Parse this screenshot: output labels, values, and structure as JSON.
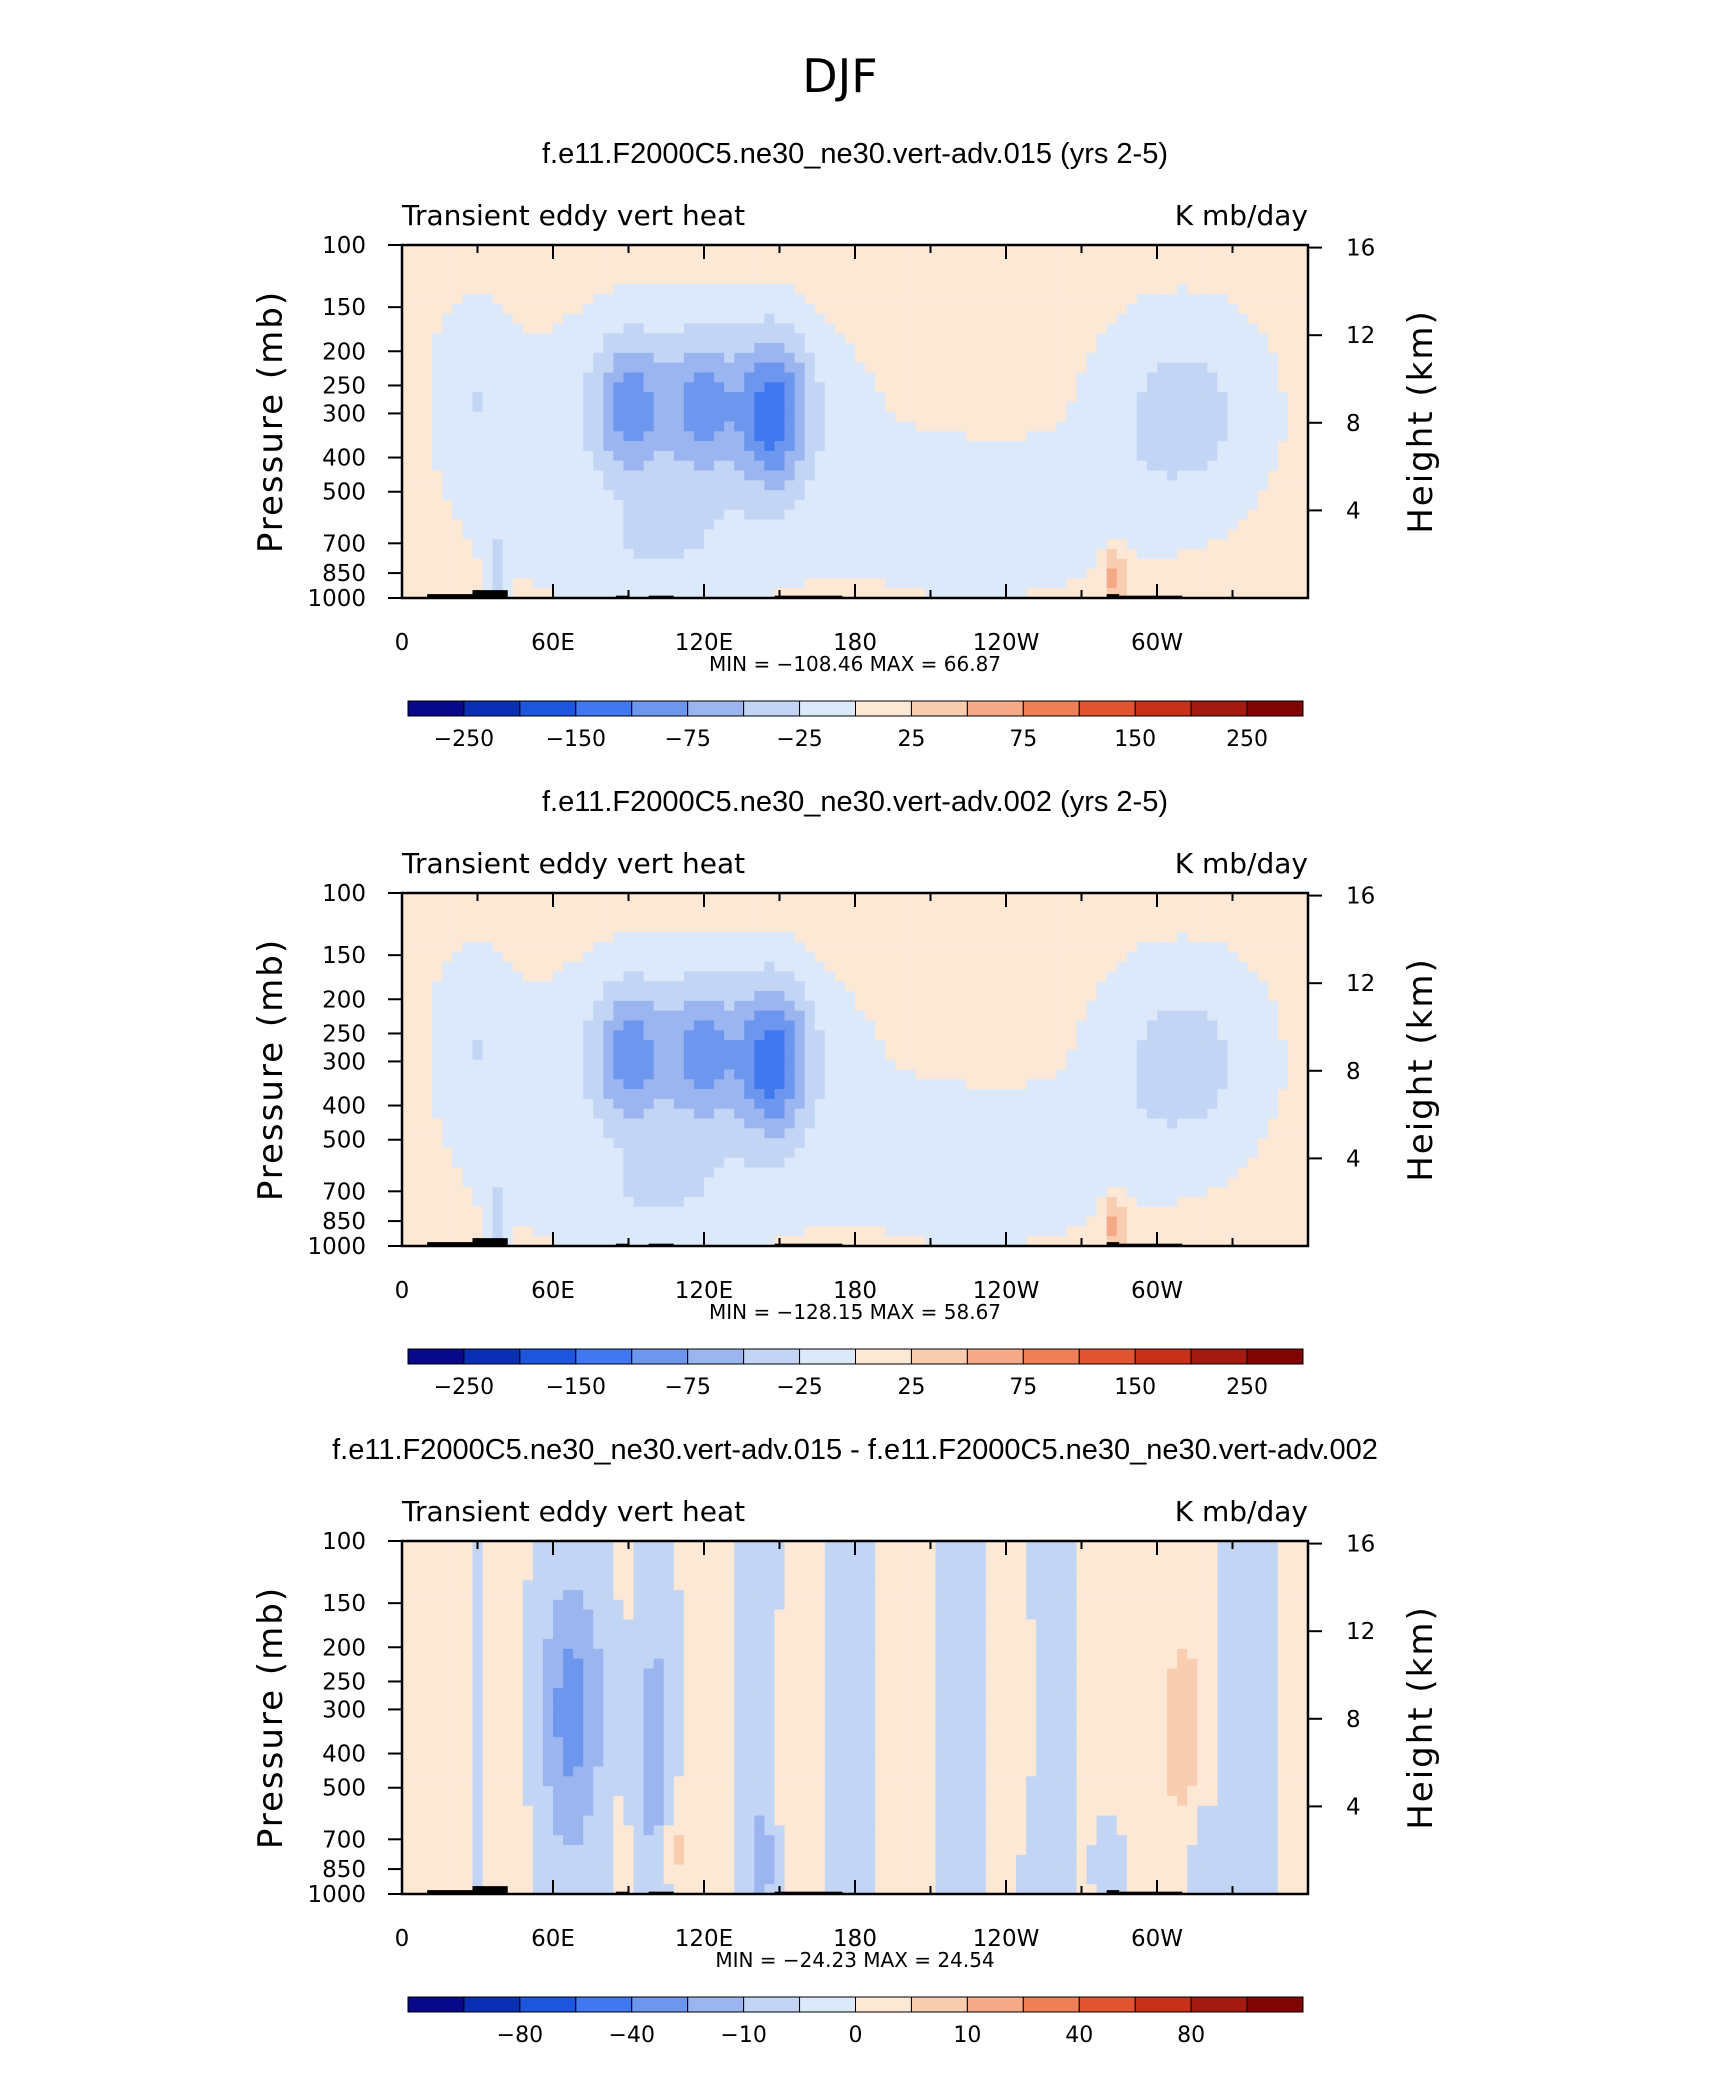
{
  "page_title": "DJF",
  "chart_data": [
    {
      "type": "heatmap",
      "title": "f.e11.F2000C5.ne30_ne30.vert-adv.015 (yrs 2-5)",
      "left_string": "Transient eddy vert heat",
      "right_string": "K mb/day",
      "xlabel": "",
      "ylabel": "Pressure (mb)",
      "ylabel_right": "Height (km)",
      "x_ticks": [
        "0",
        "60E",
        "120E",
        "180",
        "120W",
        "60W"
      ],
      "x_tick_values": [
        0,
        60,
        120,
        180,
        240,
        300
      ],
      "xlim": [
        0,
        360
      ],
      "y_ticks": [
        "100",
        "150",
        "200",
        "250",
        "300",
        "400",
        "500",
        "700",
        "850",
        "1000"
      ],
      "y_tick_values": [
        100,
        150,
        200,
        250,
        300,
        400,
        500,
        700,
        850,
        1000
      ],
      "ylim": [
        1000,
        100
      ],
      "y_right_ticks": [
        "16",
        "12",
        "8",
        "4"
      ],
      "y_right_values": [
        16,
        12,
        8,
        4
      ],
      "min_label": "MIN = −108.46",
      "max_label": "MAX =   66.87",
      "min": -108.46,
      "max": 66.87,
      "colorbar_labels": [
        "−250",
        "−150",
        "−75",
        "−25",
        "25",
        "75",
        "150",
        "250"
      ]
    },
    {
      "type": "heatmap",
      "title": "f.e11.F2000C5.ne30_ne30.vert-adv.002 (yrs 2-5)",
      "left_string": "Transient eddy vert heat",
      "right_string": "K mb/day",
      "xlabel": "",
      "ylabel": "Pressure (mb)",
      "ylabel_right": "Height (km)",
      "x_ticks": [
        "0",
        "60E",
        "120E",
        "180",
        "120W",
        "60W"
      ],
      "x_tick_values": [
        0,
        60,
        120,
        180,
        240,
        300
      ],
      "xlim": [
        0,
        360
      ],
      "y_ticks": [
        "100",
        "150",
        "200",
        "250",
        "300",
        "400",
        "500",
        "700",
        "850",
        "1000"
      ],
      "y_tick_values": [
        100,
        150,
        200,
        250,
        300,
        400,
        500,
        700,
        850,
        1000
      ],
      "ylim": [
        1000,
        100
      ],
      "y_right_ticks": [
        "16",
        "12",
        "8",
        "4"
      ],
      "y_right_values": [
        16,
        12,
        8,
        4
      ],
      "min_label": "MIN = −128.15",
      "max_label": "MAX =   58.67",
      "min": -128.15,
      "max": 58.67,
      "colorbar_labels": [
        "−250",
        "−150",
        "−75",
        "−25",
        "25",
        "75",
        "150",
        "250"
      ]
    },
    {
      "type": "heatmap",
      "title": "f.e11.F2000C5.ne30_ne30.vert-adv.015 - f.e11.F2000C5.ne30_ne30.vert-adv.002",
      "left_string": "Transient eddy vert heat",
      "right_string": "K mb/day",
      "xlabel": "",
      "ylabel": "Pressure (mb)",
      "ylabel_right": "Height (km)",
      "x_ticks": [
        "0",
        "60E",
        "120E",
        "180",
        "120W",
        "60W"
      ],
      "x_tick_values": [
        0,
        60,
        120,
        180,
        240,
        300
      ],
      "xlim": [
        0,
        360
      ],
      "y_ticks": [
        "100",
        "150",
        "200",
        "250",
        "300",
        "400",
        "500",
        "700",
        "850",
        "1000"
      ],
      "y_tick_values": [
        100,
        150,
        200,
        250,
        300,
        400,
        500,
        700,
        850,
        1000
      ],
      "ylim": [
        1000,
        100
      ],
      "y_right_ticks": [
        "16",
        "12",
        "8",
        "4"
      ],
      "y_right_values": [
        16,
        12,
        8,
        4
      ],
      "min_label": "MIN = −24.23",
      "max_label": "MAX =   24.54",
      "min": -24.23,
      "max": 24.54,
      "colorbar_labels": [
        "−80",
        "−40",
        "−10",
        "0",
        "10",
        "40",
        "80"
      ]
    }
  ],
  "colors": {
    "palette": [
      "#08088a",
      "#0a2fb4",
      "#1c55de",
      "#3f78f0",
      "#6d97ee",
      "#9ab5f0",
      "#c3d5f4",
      "#dce9fb",
      "#fde8d6",
      "#f9cdb0",
      "#f6a987",
      "#ef7f56",
      "#e35530",
      "#c8301a",
      "#a51a10",
      "#800404"
    ],
    "neutral_pos": "#fde8d6",
    "neutral_neg": "#dce9fb",
    "topography": "#000000"
  }
}
